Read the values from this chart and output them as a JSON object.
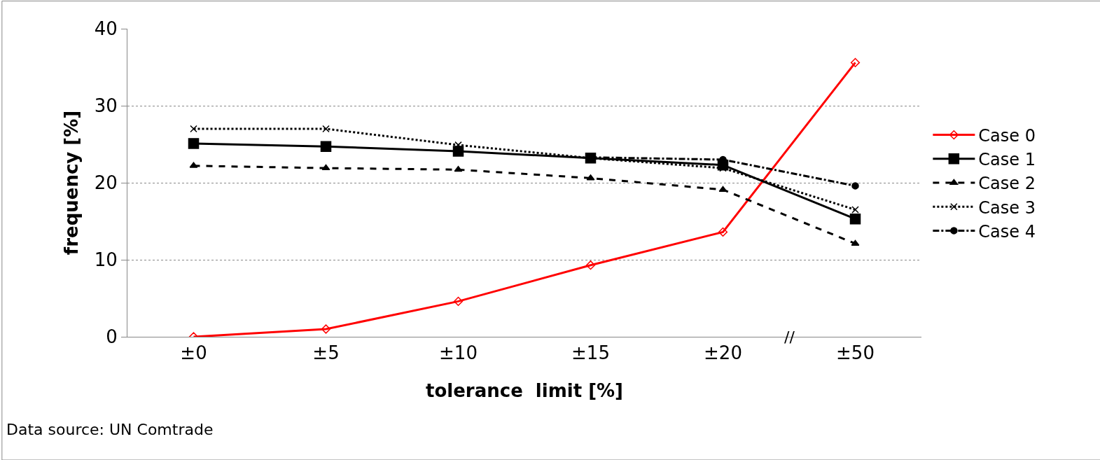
{
  "chart_data": {
    "type": "line",
    "xlabel": "tolerance  limit [%]",
    "ylabel": "frequency [%]",
    "categories": [
      "±0",
      "±5",
      "±10",
      "±15",
      "±20",
      "±50"
    ],
    "series": [
      {
        "name": "Case 0",
        "color": "#ff0000",
        "marker": "diamond",
        "line_style": "solid",
        "values": [
          0,
          1.0,
          4.6,
          9.3,
          13.6,
          35.6
        ]
      },
      {
        "name": "Case 1",
        "color": "#000000",
        "marker": "square",
        "line_style": "solid",
        "values": [
          25.1,
          24.7,
          24.1,
          23.2,
          22.3,
          15.3
        ]
      },
      {
        "name": "Case 2",
        "color": "#000000",
        "marker": "triangle",
        "line_style": "dashed",
        "values": [
          22.2,
          21.9,
          21.7,
          20.6,
          19.1,
          12.1
        ]
      },
      {
        "name": "Case 3",
        "color": "#000000",
        "marker": "cross",
        "line_style": "dotted",
        "values": [
          27.0,
          27.0,
          24.9,
          23.2,
          21.9,
          16.5
        ]
      },
      {
        "name": "Case 4",
        "color": "#000000",
        "marker": "circle",
        "line_style": "dashdot",
        "values": [
          null,
          null,
          null,
          23.3,
          23.0,
          19.6
        ]
      }
    ],
    "ylim": [
      0,
      40
    ],
    "yticks": [
      0,
      10,
      20,
      30,
      40
    ],
    "grid": "y",
    "legend": "right",
    "annotations": [
      "//",
      "Data source: UN Comtrade"
    ]
  }
}
